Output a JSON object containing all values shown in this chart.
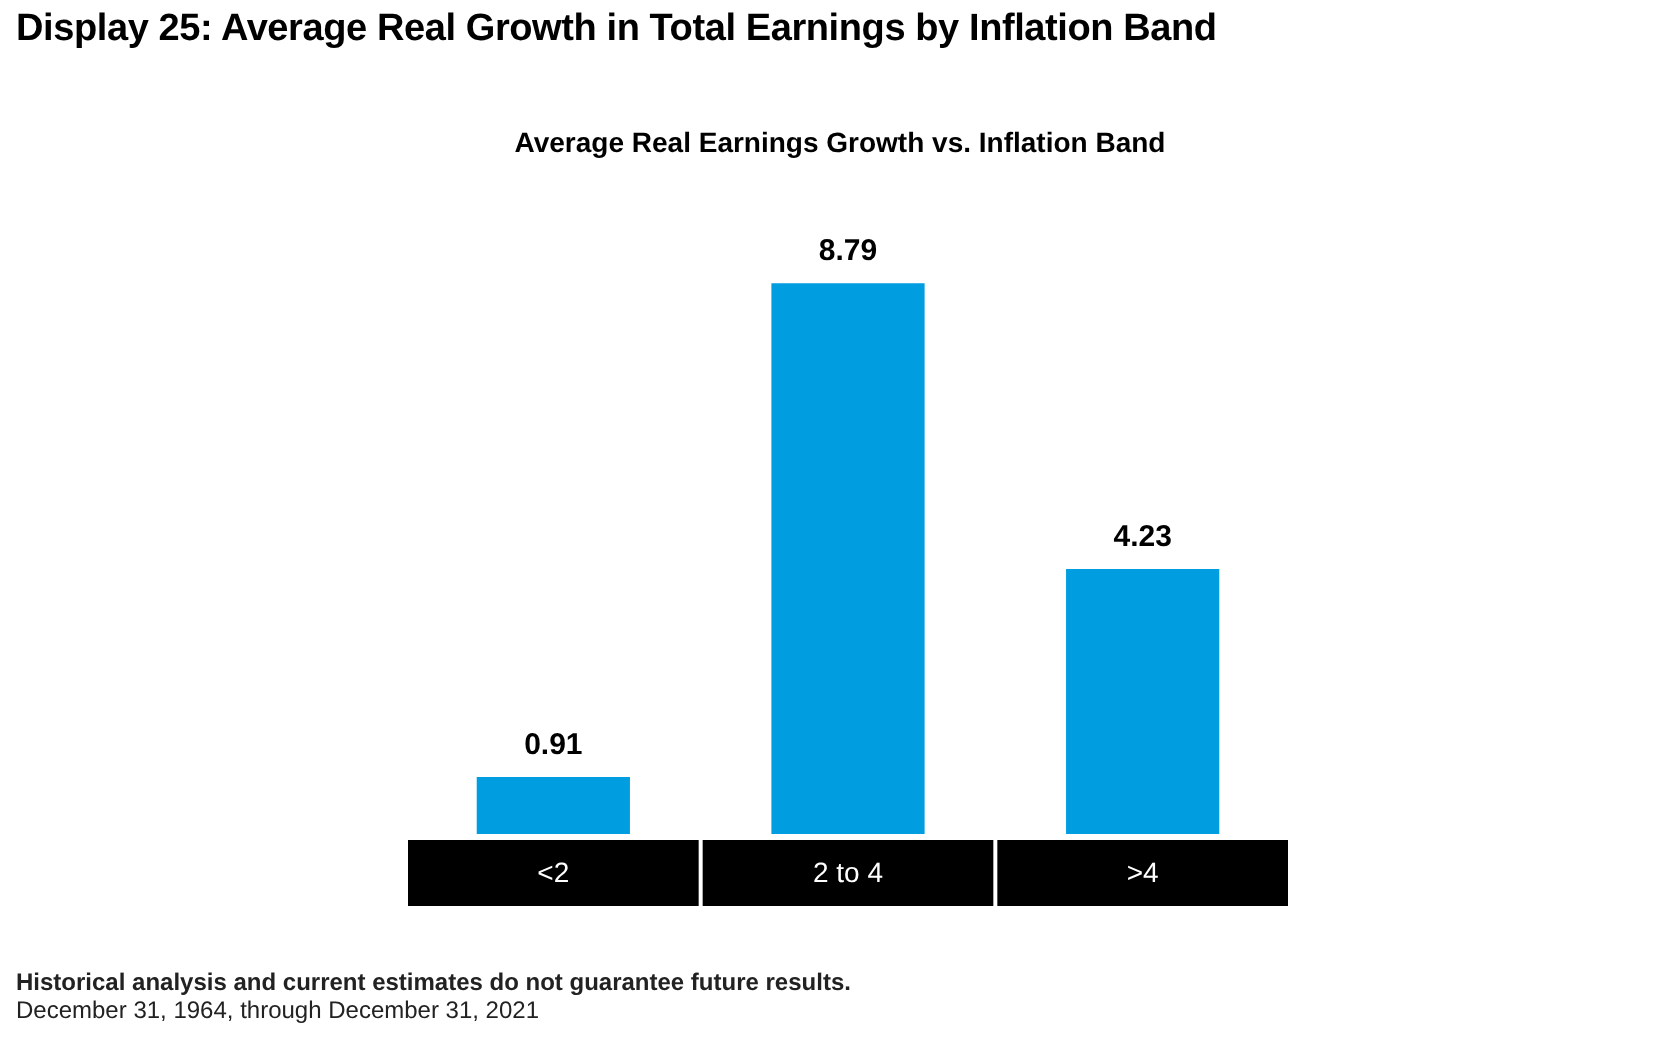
{
  "chart_data": {
    "type": "bar",
    "title": "Display 25: Average Real Growth in Total Earnings by Inflation Band",
    "subtitle": "Average Real Earnings Growth vs. Inflation Band",
    "categories": [
      "<2",
      "2 to 4",
      ">4"
    ],
    "values": [
      0.91,
      8.79,
      4.23
    ],
    "color": "#009ee0",
    "data_labels": true,
    "legend": false,
    "annotations": [
      "Historical analysis and current estimates do not guarantee future results.",
      "December 31, 1964, through December 31, 2021"
    ]
  }
}
